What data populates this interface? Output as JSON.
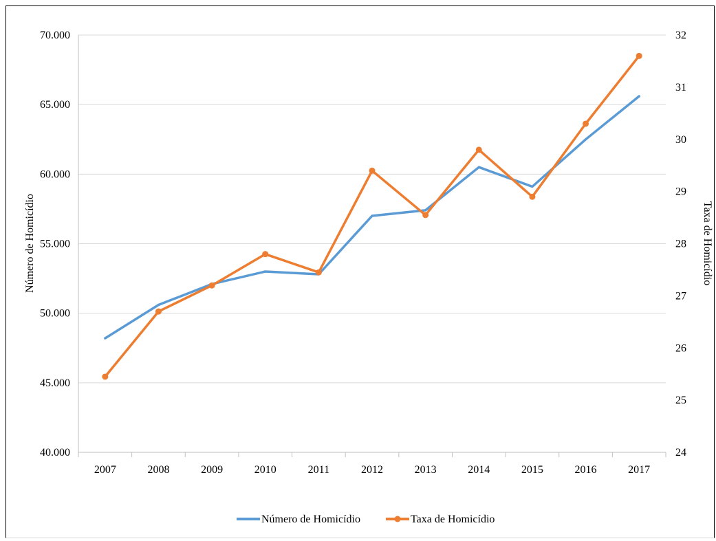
{
  "chart_data": {
    "type": "line",
    "x": [
      "2007",
      "2008",
      "2009",
      "2010",
      "2011",
      "2012",
      "2013",
      "2014",
      "2015",
      "2016",
      "2017"
    ],
    "ylabel": "Número de Homicídio",
    "y2label": "Taxa de Homicídio",
    "ylim": [
      40000,
      70000
    ],
    "y2lim": [
      24,
      32
    ],
    "yticks": [
      "40.000",
      "45.000",
      "50.000",
      "55.000",
      "60.000",
      "65.000",
      "70.000"
    ],
    "y2ticks": [
      "24",
      "25",
      "26",
      "27",
      "28",
      "29",
      "30",
      "31",
      "32"
    ],
    "grid": true,
    "legend_position": "bottom",
    "series": [
      {
        "name": "Número de Homicídio",
        "axis": "left",
        "color": "#5b9bd5",
        "markers": false,
        "values": [
          48200,
          50600,
          52100,
          53000,
          52800,
          57000,
          57400,
          60500,
          59100,
          62500,
          65600
        ]
      },
      {
        "name": "Taxa de Homicídio",
        "axis": "right",
        "color": "#ed7d31",
        "markers": true,
        "values": [
          25.45,
          26.7,
          27.2,
          27.8,
          27.45,
          29.4,
          28.55,
          29.8,
          28.9,
          30.3,
          31.6
        ]
      }
    ]
  }
}
